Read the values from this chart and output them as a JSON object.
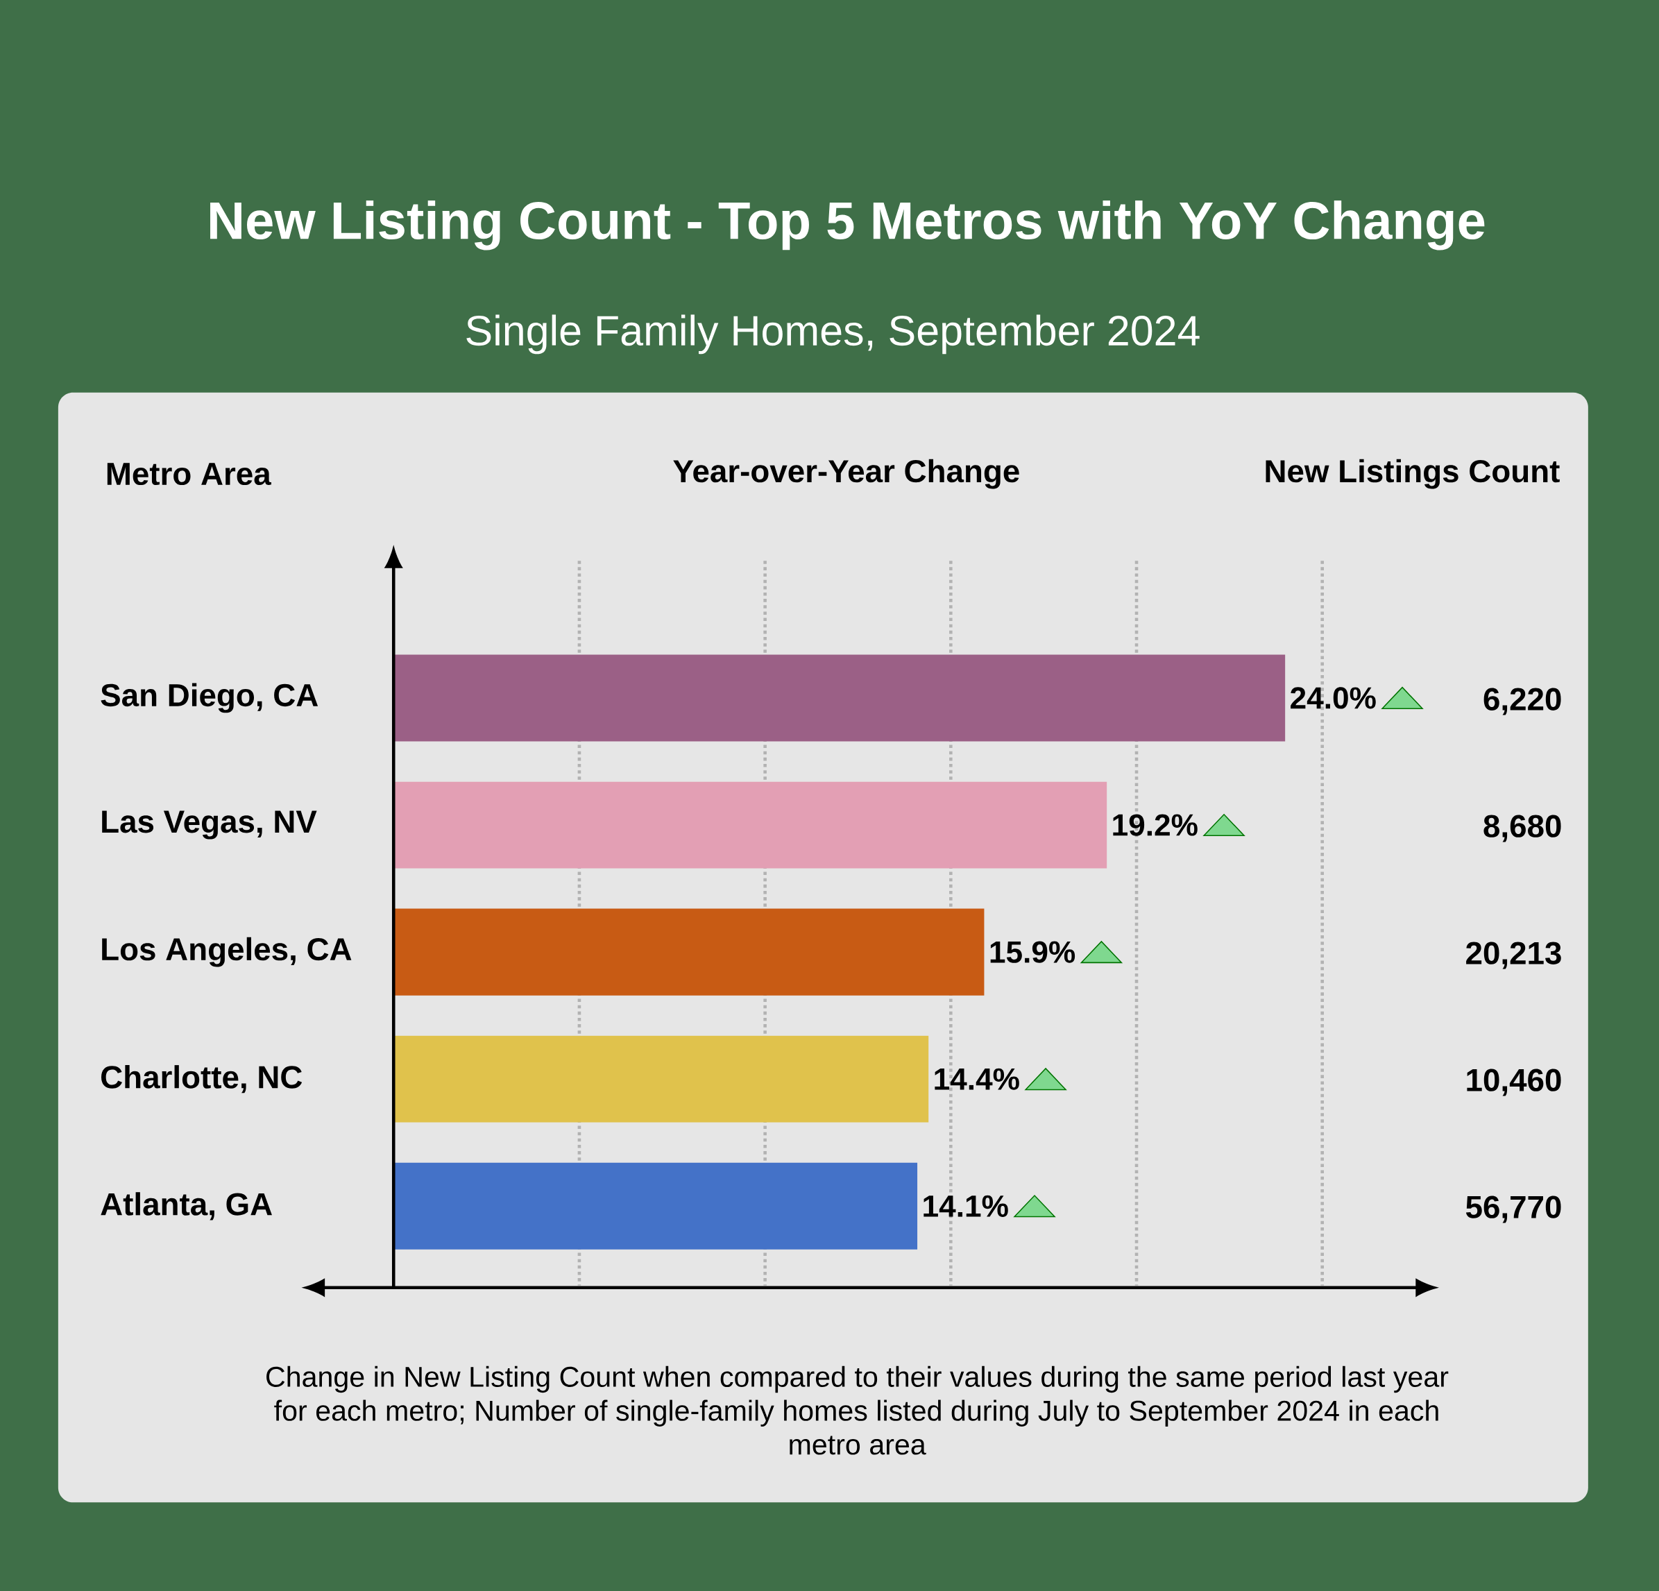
{
  "chart_data": {
    "type": "bar",
    "orientation": "horizontal",
    "title": "New Listing Count - Top 5 Metros with YoY Change",
    "subtitle": "Single Family Homes, September 2024",
    "xlabel": "Year-over-Year Change",
    "ylabel": "Metro Area",
    "categories": [
      "San Diego, CA",
      "Las Vegas, NV",
      "Los Angeles, CA",
      "Charlotte, NC",
      "Atlanta, GA"
    ],
    "values": [
      24.0,
      19.2,
      15.9,
      14.4,
      14.1
    ],
    "value_labels": [
      "24.0%",
      "19.2%",
      "15.9%",
      "14.4%",
      "14.1%"
    ],
    "colors": [
      "#9b6086",
      "#e39fb4",
      "#c85b14",
      "#e0c24c",
      "#4472c8"
    ],
    "xticks": [
      {
        "value": 5,
        "label": null
      },
      {
        "value": 10,
        "label": null
      },
      {
        "value": 15,
        "label": null
      },
      {
        "value": 20,
        "label": null
      },
      {
        "value": 25,
        "label": null
      }
    ],
    "grid": "x",
    "tick_labels": "y",
    "annotations": [
      "New Listings Count",
      "6,220",
      "8,680",
      "20,213",
      "10,460",
      "56,770",
      "Change in New Listing Count when compared to their values during the same period last year for each metro;  Number of single-family homes listed during July to September 2024 in each metro area"
    ]
  }
}
